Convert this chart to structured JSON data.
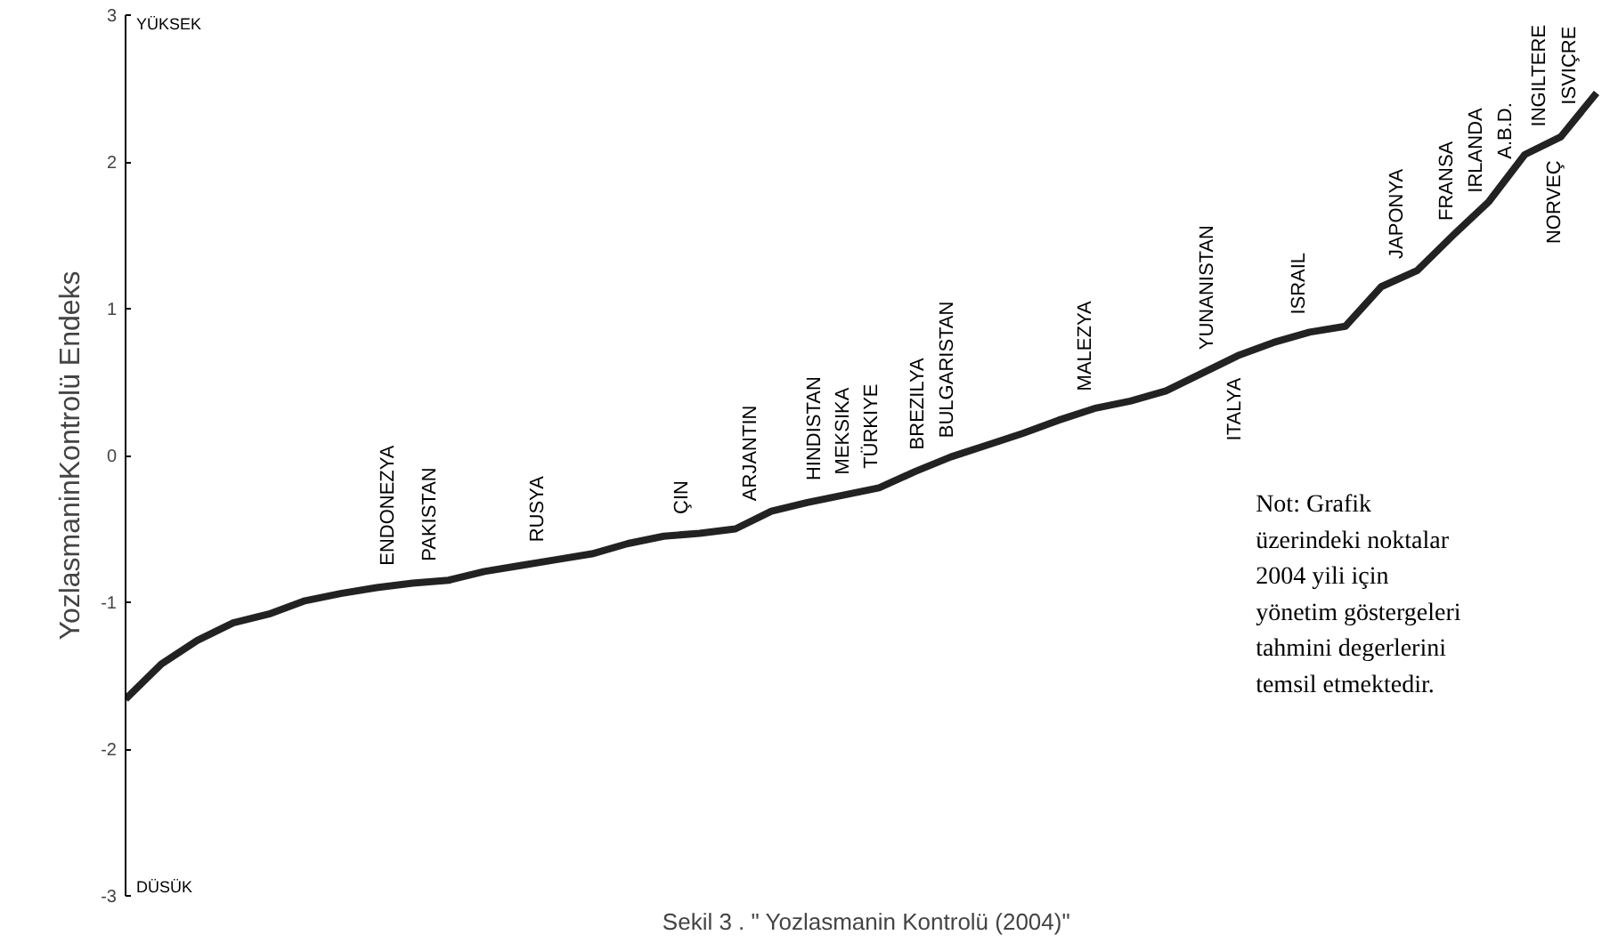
{
  "chart_data": {
    "type": "line",
    "title": "Sekil 3 . \" Yozlasmanin Kontrolü (2004)\"",
    "ylabel": "YozlasmaninKontrolü Endeks",
    "categories": [
      null,
      null,
      null,
      null,
      null,
      null,
      null,
      null,
      null,
      null,
      null,
      null,
      null,
      null,
      null,
      null,
      null,
      null,
      null,
      null,
      null,
      null,
      null,
      null,
      null,
      null,
      null,
      null,
      null,
      null,
      null,
      null,
      null,
      null,
      null,
      null,
      null,
      null,
      null,
      null,
      null,
      null
    ],
    "values": [
      -1.66,
      -1.42,
      -1.26,
      -1.14,
      -1.08,
      -0.99,
      -0.94,
      -0.9,
      -0.87,
      -0.85,
      -0.79,
      -0.75,
      -0.71,
      -0.67,
      -0.6,
      -0.55,
      -0.53,
      -0.5,
      -0.38,
      -0.32,
      -0.27,
      -0.22,
      -0.11,
      -0.01,
      0.07,
      0.15,
      0.24,
      0.32,
      0.37,
      0.44,
      0.56,
      0.68,
      0.77,
      0.84,
      0.88,
      1.15,
      1.26,
      1.5,
      1.73,
      2.05,
      2.17,
      2.47
    ],
    "color": "#222222",
    "ylim": [
      -3,
      3
    ],
    "yticks": [
      -3,
      -2,
      -1,
      0,
      1,
      2,
      3
    ],
    "tick_labels": "y",
    "annotations": [
      "YÜKSEK",
      "DÜSÜK",
      "Not: Grafik\nüzerindeki noktalar\n2004 yili için\nyönetim göstergeleri\ntahmini degerlerini\ntemsil etmektedir.",
      {
        "text": "ENDONEZYA",
        "y": -0.89
      },
      {
        "text": "PAKISTAN",
        "y": -0.86
      },
      {
        "text": "RUSYA",
        "y": -0.73
      },
      {
        "text": "ÇIN",
        "y": -0.54
      },
      {
        "text": "ARJANTIN",
        "y": -0.45
      },
      {
        "text": "HINDISTAN",
        "y": -0.31
      },
      {
        "text": "MEKSIKA",
        "y": -0.27
      },
      {
        "text": "TÜRKIYE",
        "y": -0.23
      },
      {
        "text": "BREZILYA",
        "y": -0.1
      },
      {
        "text": "BULGARISTAN",
        "y": -0.02
      },
      {
        "text": "MALEZYA",
        "y": 0.3
      },
      {
        "text": "YUNANISTAN",
        "y": 0.58
      },
      {
        "text": "ITALYA",
        "y": 0.67
      },
      {
        "text": "ISRAIL",
        "y": 0.82
      },
      {
        "text": "JAPONYA",
        "y": 1.2
      },
      {
        "text": "FRANSA",
        "y": 1.46
      },
      {
        "text": "IRLANDA",
        "y": 1.65
      },
      {
        "text": "A.B.D.",
        "y": 1.88
      },
      {
        "text": "INGILTERE",
        "y": 2.1
      },
      {
        "text": "NORVEÇ",
        "y": 2.15
      },
      {
        "text": "ISVIÇRE",
        "y": 2.25
      }
    ]
  }
}
